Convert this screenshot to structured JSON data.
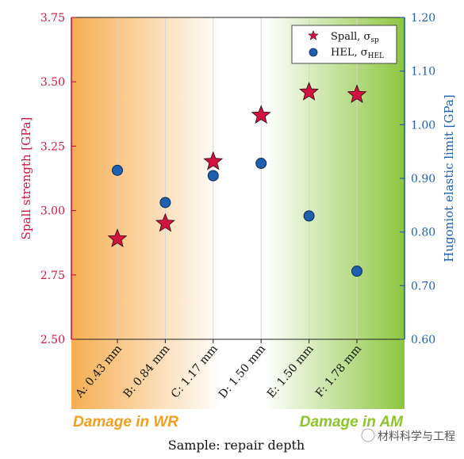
{
  "chart_data": {
    "type": "scatter",
    "categories": [
      "A: 0.43 mm",
      "B: 0.84 mm",
      "C: 1.17 mm",
      "D: 1.50 mm",
      "E: 1.50 mm",
      "F: 1.78 mm"
    ],
    "xlabel": "Sample: repair depth",
    "ylabel_left": "Spall strength [GPa]",
    "ylabel_right": "Hugoniot elastic limit [GPa]",
    "ylim_left": [
      2.5,
      3.75
    ],
    "ylim_right": [
      0.6,
      1.2
    ],
    "yticks_left": [
      "2.50",
      "2.75",
      "3.00",
      "3.25",
      "3.50",
      "3.75"
    ],
    "yticks_right": [
      "0.60",
      "0.70",
      "0.80",
      "0.90",
      "1.00",
      "1.10",
      "1.20"
    ],
    "grid": "vertical",
    "legend_position": "top-right",
    "series": [
      {
        "name": "Spall, σ",
        "name_sub": "sp",
        "axis": "left",
        "marker": "star",
        "color": "#d1143f",
        "values": [
          2.89,
          2.95,
          3.19,
          3.37,
          3.46,
          3.45
        ]
      },
      {
        "name": "HEL, σ",
        "name_sub": "HEL",
        "axis": "right",
        "marker": "circle",
        "color": "#1f5fb0",
        "values": [
          0.915,
          0.855,
          0.905,
          0.928,
          0.83,
          0.727
        ]
      }
    ],
    "annotations": {
      "left": "Damage in WR",
      "right": "Damage in AM"
    },
    "watermark": "材料科学与工程",
    "colors": {
      "left_axis": "#d1143f",
      "right_axis": "#1f5fb0",
      "wr_gradient": "#f5ae52",
      "am_gradient": "#8cc63f",
      "wr_text": "#f0a020",
      "am_text": "#8cc42a"
    }
  }
}
